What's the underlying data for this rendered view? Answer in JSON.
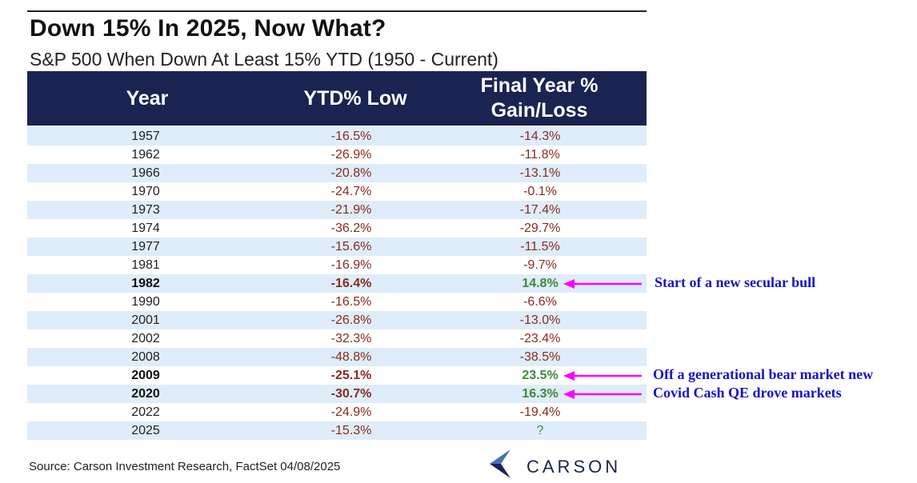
{
  "title": "Down 15% In 2025, Now What?",
  "subtitle": "S&P 500 When Down At Least 15% YTD (1950 - Current)",
  "source": "Source: Carson Investment Research, FactSet 04/08/2025",
  "logo_text": "CARSON",
  "colors": {
    "header_bg": "#1b2450",
    "row_alt": "#deedf9",
    "negative": "#8a2a1e",
    "positive": "#3f8a3a",
    "annotation": "#1414c8",
    "arrow": "#ff00ff"
  },
  "chart_data": {
    "type": "table",
    "columns": [
      "Year",
      "YTD% Low",
      "Final Year % Gain/Loss"
    ],
    "header_lines": {
      "final_1": "Final Year %",
      "final_2": "Gain/Loss"
    },
    "rows": [
      {
        "year": "1957",
        "ytd_low": "-16.5%",
        "final": "-14.3%"
      },
      {
        "year": "1962",
        "ytd_low": "-26.9%",
        "final": "-11.8%"
      },
      {
        "year": "1966",
        "ytd_low": "-20.8%",
        "final": "-13.1%"
      },
      {
        "year": "1970",
        "ytd_low": "-24.7%",
        "final": "-0.1%"
      },
      {
        "year": "1973",
        "ytd_low": "-21.9%",
        "final": "-17.4%"
      },
      {
        "year": "1974",
        "ytd_low": "-36.2%",
        "final": "-29.7%"
      },
      {
        "year": "1977",
        "ytd_low": "-15.6%",
        "final": "-11.5%"
      },
      {
        "year": "1981",
        "ytd_low": "-16.9%",
        "final": "-9.7%"
      },
      {
        "year": "1982",
        "ytd_low": "-16.4%",
        "final": "14.8%",
        "bold": true,
        "positive": true
      },
      {
        "year": "1990",
        "ytd_low": "-16.5%",
        "final": "-6.6%"
      },
      {
        "year": "2001",
        "ytd_low": "-26.8%",
        "final": "-13.0%"
      },
      {
        "year": "2002",
        "ytd_low": "-32.3%",
        "final": "-23.4%"
      },
      {
        "year": "2008",
        "ytd_low": "-48.8%",
        "final": "-38.5%"
      },
      {
        "year": "2009",
        "ytd_low": "-25.1%",
        "final": "23.5%",
        "bold": true,
        "positive": true
      },
      {
        "year": "2020",
        "ytd_low": "-30.7%",
        "final": "16.3%",
        "bold": true,
        "positive": true
      },
      {
        "year": "2022",
        "ytd_low": "-24.9%",
        "final": "-19.4%"
      },
      {
        "year": "2025",
        "ytd_low": "-15.3%",
        "final": "?",
        "positive": true
      }
    ]
  },
  "annotations": [
    {
      "row": 8,
      "text": "Start of a new secular bull"
    },
    {
      "row": 13,
      "text": "Off a generational bear market new"
    },
    {
      "row": 14,
      "text": "Covid Cash QE drove markets"
    }
  ]
}
